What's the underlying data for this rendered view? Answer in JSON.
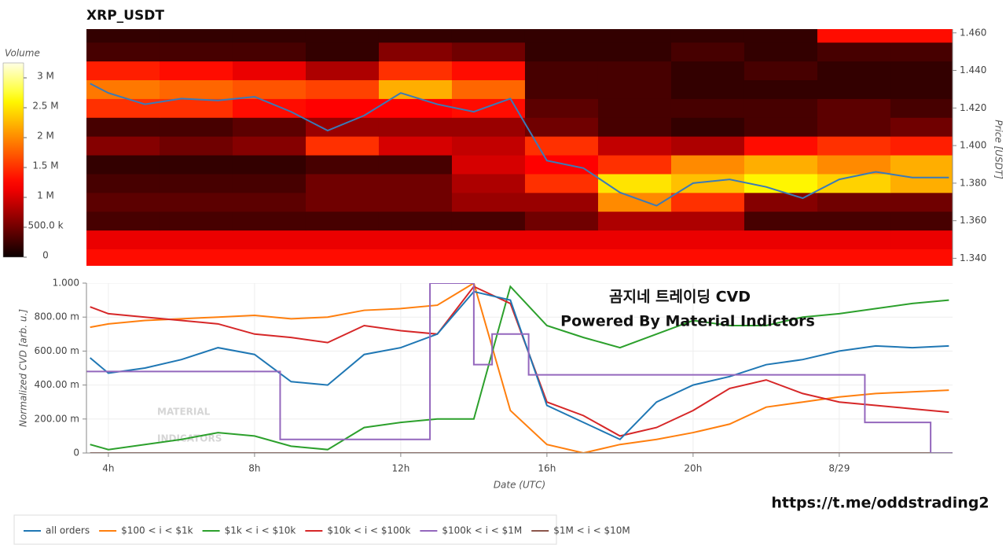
{
  "chart_data": [
    {
      "type": "heatmap",
      "title": "XRP_USDT",
      "ylabel": "Price [USDT]",
      "yaxis_position": "right",
      "colorbar_title": "Volume",
      "xlim": [
        3.4,
        27.1
      ],
      "ylim": [
        1.336,
        1.462
      ],
      "yticks": [
        {
          "value": 1.34,
          "label": "1.340"
        },
        {
          "value": 1.36,
          "label": "1.360"
        },
        {
          "value": 1.38,
          "label": "1.380"
        },
        {
          "value": 1.4,
          "label": "1.400"
        },
        {
          "value": 1.42,
          "label": "1.420"
        },
        {
          "value": 1.44,
          "label": "1.440"
        },
        {
          "value": 1.46,
          "label": "1.460"
        }
      ],
      "zlim": [
        0,
        3250000
      ],
      "zticks": [
        0,
        {
          "value": 500000,
          "label": "500.0 k"
        },
        {
          "value": 1000000,
          "label": "1 M"
        },
        {
          "value": 1500000,
          "label": "1.5 M"
        },
        {
          "value": 2000000,
          "label": "2 M"
        },
        {
          "value": 2500000,
          "label": "2.5 M"
        },
        {
          "value": 3000000,
          "label": "3 M"
        }
      ],
      "x_bins": [
        3.4,
        5.4,
        7.4,
        9.4,
        11.4,
        13.4,
        15.4,
        17.4,
        19.4,
        21.4,
        23.4,
        25.4,
        27.1
      ],
      "y_bins": [
        1.335,
        1.345,
        1.355,
        1.365,
        1.375,
        1.385,
        1.395,
        1.405,
        1.415,
        1.425,
        1.435,
        1.445,
        1.455,
        1.465
      ],
      "z": [
        [
          1300000,
          1300000,
          1300000,
          1300000,
          1300000,
          1300000,
          1300000,
          1300000,
          1300000,
          1300000,
          1300000,
          1300000
        ],
        [
          1100000,
          1100000,
          1100000,
          1100000,
          1100000,
          1100000,
          1100000,
          1100000,
          1100000,
          1100000,
          1100000,
          1100000
        ],
        [
          300000,
          300000,
          300000,
          300000,
          300000,
          300000,
          500000,
          800000,
          800000,
          300000,
          300000,
          300000
        ],
        [
          400000,
          400000,
          400000,
          500000,
          500000,
          700000,
          700000,
          2000000,
          1500000,
          600000,
          500000,
          500000
        ],
        [
          300000,
          300000,
          300000,
          500000,
          500000,
          800000,
          1500000,
          2500000,
          2300000,
          2600000,
          2400000,
          2200000
        ],
        [
          200000,
          200000,
          200000,
          300000,
          300000,
          1000000,
          1200000,
          1500000,
          2000000,
          2200000,
          2000000,
          2200000
        ],
        [
          600000,
          500000,
          600000,
          1500000,
          1000000,
          900000,
          1500000,
          900000,
          800000,
          1300000,
          1500000,
          1400000
        ],
        [
          300000,
          300000,
          400000,
          700000,
          700000,
          700000,
          500000,
          300000,
          200000,
          300000,
          400000,
          500000
        ],
        [
          1500000,
          1500000,
          1300000,
          1200000,
          1200000,
          1300000,
          400000,
          300000,
          300000,
          300000,
          400000,
          300000
        ],
        [
          1900000,
          1800000,
          1700000,
          1600000,
          2200000,
          1800000,
          300000,
          300000,
          200000,
          200000,
          200000,
          200000
        ],
        [
          1400000,
          1300000,
          1100000,
          800000,
          1500000,
          1300000,
          300000,
          300000,
          200000,
          300000,
          200000,
          200000
        ],
        [
          300000,
          300000,
          300000,
          200000,
          600000,
          500000,
          200000,
          200000,
          300000,
          200000,
          300000,
          300000
        ],
        [
          200000,
          200000,
          200000,
          200000,
          200000,
          200000,
          200000,
          200000,
          200000,
          200000,
          1300000,
          1300000
        ]
      ],
      "price_color": "#3a7ab8",
      "x": [
        3.5,
        4,
        5,
        6,
        7,
        8,
        9,
        10,
        11,
        12,
        13,
        14,
        15,
        16,
        17,
        18,
        19,
        20,
        21,
        22,
        23,
        24,
        25,
        26,
        27
      ],
      "values": [
        1.433,
        1.428,
        1.422,
        1.425,
        1.424,
        1.426,
        1.418,
        1.408,
        1.416,
        1.428,
        1.422,
        1.418,
        1.425,
        1.392,
        1.388,
        1.375,
        1.368,
        1.38,
        1.382,
        1.378,
        1.372,
        1.382,
        1.386,
        1.383,
        1.383
      ]
    },
    {
      "type": "line",
      "ylabel": "Normalized CVD [arb. u.]",
      "xlabel": "Date (UTC)",
      "grid": true,
      "annotations": [
        "곰지네 트레이딩 CVD",
        "Powered By Material Indictors",
        "https://t.me/oddstrading2"
      ],
      "watermark": [
        "MATERIAL",
        "INDICATORS"
      ],
      "xlim": [
        3.4,
        27.1
      ],
      "ylim": [
        0,
        1
      ],
      "xticks": [
        {
          "value": 4,
          "label": "4h"
        },
        {
          "value": 8,
          "label": "8h"
        },
        {
          "value": 12,
          "label": "12h"
        },
        {
          "value": 16,
          "label": "16h"
        },
        {
          "value": 20,
          "label": "20h"
        },
        {
          "value": 24,
          "label": "8/29"
        }
      ],
      "yticks": [
        0,
        {
          "value": 0.2,
          "label": "200.00 m"
        },
        {
          "value": 0.4,
          "label": "400.00 m"
        },
        {
          "value": 0.6,
          "label": "600.00 m"
        },
        {
          "value": 0.8,
          "label": "800.00 m"
        },
        {
          "value": 1,
          "label": "1.000"
        }
      ],
      "x": [
        3.5,
        4,
        5,
        6,
        7,
        8,
        9,
        10,
        11,
        12,
        13,
        14,
        15,
        16,
        17,
        18,
        19,
        20,
        21,
        22,
        23,
        24,
        25,
        26,
        27
      ],
      "series": [
        {
          "name": "all orders",
          "color": "#1f77b4",
          "values": [
            0.56,
            0.47,
            0.5,
            0.55,
            0.62,
            0.58,
            0.42,
            0.4,
            0.58,
            0.62,
            0.7,
            0.95,
            0.9,
            0.28,
            0.18,
            0.08,
            0.3,
            0.4,
            0.45,
            0.52,
            0.55,
            0.6,
            0.63,
            0.62,
            0.63
          ]
        },
        {
          "name": "$100 < i < $1k",
          "color": "#ff7f0e",
          "values": [
            0.74,
            0.76,
            0.78,
            0.79,
            0.8,
            0.81,
            0.79,
            0.8,
            0.84,
            0.85,
            0.87,
            1.0,
            0.25,
            0.05,
            0.0,
            0.05,
            0.08,
            0.12,
            0.17,
            0.27,
            0.3,
            0.33,
            0.35,
            0.36,
            0.37
          ]
        },
        {
          "name": "$1k < i < $10k",
          "color": "#2ca02c",
          "values": [
            0.05,
            0.02,
            0.05,
            0.08,
            0.12,
            0.1,
            0.04,
            0.02,
            0.15,
            0.18,
            0.2,
            0.2,
            0.98,
            0.75,
            0.68,
            0.62,
            0.7,
            0.78,
            0.75,
            0.75,
            0.8,
            0.82,
            0.85,
            0.88,
            0.9
          ]
        },
        {
          "name": "$10k < i < $100k",
          "color": "#d62728",
          "values": [
            0.86,
            0.82,
            0.8,
            0.78,
            0.76,
            0.7,
            0.68,
            0.65,
            0.75,
            0.72,
            0.7,
            0.98,
            0.88,
            0.3,
            0.22,
            0.1,
            0.15,
            0.25,
            0.38,
            0.43,
            0.35,
            0.3,
            0.28,
            0.26,
            0.24
          ]
        },
        {
          "name": "$100k < i < $1M",
          "color": "#9467bd",
          "x": [
            3.4,
            8.7,
            8.7,
            12.8,
            12.8,
            14.0,
            14.0,
            14.5,
            14.5,
            15.5,
            15.5,
            24.7,
            24.7,
            26.5,
            26.5,
            27.1
          ],
          "values": [
            0.48,
            0.48,
            0.08,
            0.08,
            1.0,
            1.0,
            0.52,
            0.52,
            0.7,
            0.7,
            0.46,
            0.46,
            0.18,
            0.18,
            0,
            0
          ]
        },
        {
          "name": "$1M < i < $10M",
          "color": "#8c564b",
          "values": [
            0,
            0,
            0,
            0,
            0,
            0,
            0,
            0,
            0,
            0,
            0,
            0,
            0,
            0,
            0,
            0,
            0,
            0,
            0,
            0,
            0,
            0,
            0,
            0,
            0
          ]
        }
      ]
    }
  ]
}
